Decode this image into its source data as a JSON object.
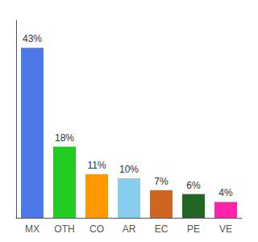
{
  "chart_data": {
    "type": "bar",
    "categories": [
      "MX",
      "OTH",
      "CO",
      "AR",
      "EC",
      "PE",
      "VE"
    ],
    "values": [
      43,
      18,
      11,
      10,
      7,
      6,
      4
    ],
    "value_labels": [
      "43%",
      "18%",
      "11%",
      "10%",
      "7%",
      "6%",
      "4%"
    ],
    "colors": [
      "#4d79e6",
      "#22cc22",
      "#ff9900",
      "#88ccee",
      "#cc6622",
      "#226622",
      "#ff22aa"
    ],
    "ylim": [
      0,
      50
    ],
    "data_labels": true,
    "tick_labels": "x",
    "grid": false
  }
}
